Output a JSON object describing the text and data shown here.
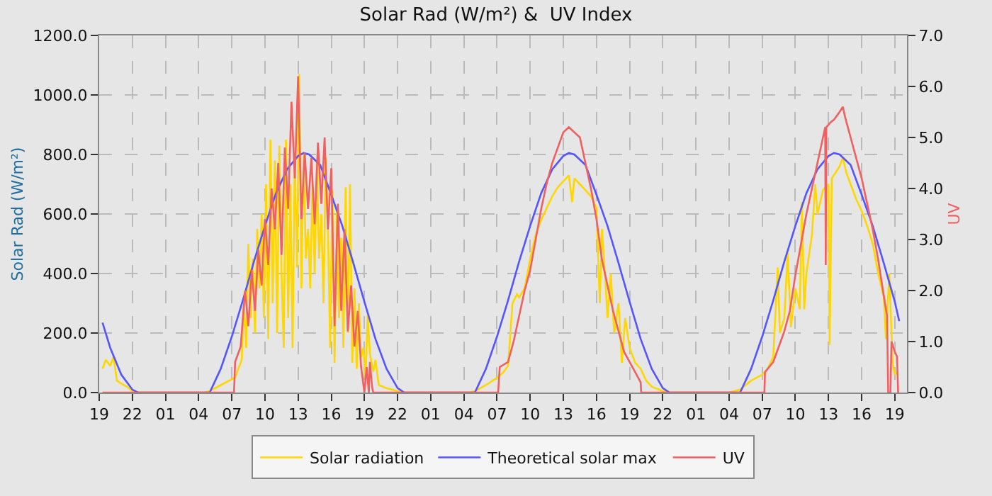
{
  "chart_data": {
    "type": "line",
    "title": "Solar Rad (W/m²) &  UV Index",
    "ylabel": "Solar Rad (W/m²)",
    "y2label": "UV",
    "xlim": [
      "--01-01T19:00",
      "--01-04T20:06"
    ],
    "xticks": [
      {
        "value": "--01-01T19:00",
        "label": "19"
      },
      {
        "value": "--01-01T22:00",
        "label": "22"
      },
      {
        "value": "--01-02T01:00",
        "label": "01"
      },
      {
        "value": "--01-02T04:00",
        "label": "04"
      },
      {
        "value": "--01-02T07:00",
        "label": "07"
      },
      {
        "value": "--01-02T10:00",
        "label": "10"
      },
      {
        "value": "--01-02T13:00",
        "label": "13"
      },
      {
        "value": "--01-02T16:00",
        "label": "16"
      },
      {
        "value": "--01-02T19:00",
        "label": "19"
      },
      {
        "value": "--01-02T22:00",
        "label": "22"
      },
      {
        "value": "--01-03T01:00",
        "label": "01"
      },
      {
        "value": "--01-03T04:00",
        "label": "04"
      },
      {
        "value": "--01-03T07:00",
        "label": "07"
      },
      {
        "value": "--01-03T10:00",
        "label": "10"
      },
      {
        "value": "--01-03T13:00",
        "label": "13"
      },
      {
        "value": "--01-03T16:00",
        "label": "16"
      },
      {
        "value": "--01-03T19:00",
        "label": "19"
      },
      {
        "value": "--01-03T22:00",
        "label": "22"
      },
      {
        "value": "--01-04T01:00",
        "label": "01"
      },
      {
        "value": "--01-04T04:00",
        "label": "04"
      },
      {
        "value": "--01-04T07:00",
        "label": "07"
      },
      {
        "value": "--01-04T10:00",
        "label": "10"
      },
      {
        "value": "--01-04T13:00",
        "label": "13"
      },
      {
        "value": "--01-04T16:00",
        "label": "16"
      },
      {
        "value": "--01-04T19:00",
        "label": "19"
      }
    ],
    "ylim": [
      0,
      1200
    ],
    "yticks": [
      {
        "value": 0,
        "label": "0.0"
      },
      {
        "value": 200,
        "label": "200.0"
      },
      {
        "value": 400,
        "label": "400.0"
      },
      {
        "value": 600,
        "label": "600.0"
      },
      {
        "value": 800,
        "label": "800.0"
      },
      {
        "value": 1000,
        "label": "1000.0"
      },
      {
        "value": 1200,
        "label": "1200.0"
      }
    ],
    "y2lim": [
      0,
      7
    ],
    "y2ticks": [
      {
        "value": 0,
        "label": "0.0"
      },
      {
        "value": 1,
        "label": "1.0"
      },
      {
        "value": 2,
        "label": "2.0"
      },
      {
        "value": 3,
        "label": "3.0"
      },
      {
        "value": 4,
        "label": "4.0"
      },
      {
        "value": 5,
        "label": "5.0"
      },
      {
        "value": 6,
        "label": "6.0"
      },
      {
        "value": 7,
        "label": "7.0"
      }
    ],
    "grid": true,
    "legend": "bottom",
    "line_style": "solid",
    "series": [
      {
        "name": "Solar radiation",
        "color": "#ffd700",
        "x": [
          "--01-01T19:18",
          "--01-01T19:36",
          "--01-01T20:00",
          "--01-01T20:18",
          "--01-01T20:36",
          "--01-01T21:00",
          "--01-01T21:30",
          "--01-01T22:00",
          "--01-01T22:30",
          "--01-02T04:30",
          "--01-02T05:00",
          "--01-02T06:00",
          "--01-02T07:00",
          "--01-02T07:18",
          "--01-02T07:36",
          "--01-02T07:54",
          "--01-02T08:06",
          "--01-02T08:18",
          "--01-02T08:30",
          "--01-02T08:42",
          "--01-02T08:54",
          "--01-02T09:06",
          "--01-02T09:18",
          "--01-02T09:30",
          "--01-02T09:42",
          "--01-02T09:54",
          "--01-02T10:06",
          "--01-02T10:18",
          "--01-02T10:30",
          "--01-02T10:42",
          "--01-02T10:54",
          "--01-02T11:06",
          "--01-02T11:18",
          "--01-02T11:30",
          "--01-02T11:42",
          "--01-02T11:54",
          "--01-02T12:06",
          "--01-02T12:18",
          "--01-02T12:30",
          "--01-02T12:42",
          "--01-02T12:54",
          "--01-02T13:06",
          "--01-02T13:18",
          "--01-02T13:30",
          "--01-02T13:42",
          "--01-02T13:54",
          "--01-02T14:06",
          "--01-02T14:18",
          "--01-02T14:30",
          "--01-02T14:42",
          "--01-02T14:54",
          "--01-02T15:06",
          "--01-02T15:18",
          "--01-02T15:30",
          "--01-02T15:42",
          "--01-02T15:54",
          "--01-02T16:06",
          "--01-02T16:18",
          "--01-02T16:30",
          "--01-02T16:42",
          "--01-02T16:54",
          "--01-02T17:06",
          "--01-02T17:18",
          "--01-02T17:30",
          "--01-02T17:42",
          "--01-02T17:54",
          "--01-02T18:06",
          "--01-02T18:18",
          "--01-02T18:30",
          "--01-02T18:42",
          "--01-02T18:54",
          "--01-02T19:06",
          "--01-02T19:18",
          "--01-02T19:30",
          "--01-02T19:48",
          "--01-02T20:00",
          "--01-02T20:18",
          "--01-02T21:00",
          "--01-02T22:00",
          "--01-02T22:30",
          "--01-03T04:30",
          "--01-03T05:00",
          "--01-03T06:00",
          "--01-03T07:00",
          "--01-03T07:30",
          "--01-03T08:00",
          "--01-03T08:24",
          "--01-03T08:48",
          "--01-03T09:00",
          "--01-03T09:30",
          "--01-03T10:00",
          "--01-03T10:30",
          "--01-03T11:00",
          "--01-03T11:30",
          "--01-03T12:00",
          "--01-03T12:30",
          "--01-03T13:00",
          "--01-03T13:30",
          "--01-03T13:48",
          "--01-03T14:00",
          "--01-03T14:30",
          "--01-03T15:00",
          "--01-03T15:30",
          "--01-03T16:00",
          "--01-03T16:18",
          "--01-03T16:30",
          "--01-03T16:48",
          "--01-03T17:00",
          "--01-03T17:18",
          "--01-03T17:36",
          "--01-03T18:00",
          "--01-03T18:18",
          "--01-03T18:36",
          "--01-03T19:00",
          "--01-03T19:30",
          "--01-03T20:00",
          "--01-03T20:30",
          "--01-03T21:00",
          "--01-03T22:00",
          "--01-03T22:30",
          "--01-04T04:00",
          "--01-04T05:00",
          "--01-04T06:00",
          "--01-04T07:00",
          "--01-04T07:30",
          "--01-04T08:00",
          "--01-04T08:24",
          "--01-04T08:36",
          "--01-04T09:00",
          "--01-04T09:18",
          "--01-04T09:36",
          "--01-04T10:00",
          "--01-04T10:24",
          "--01-04T10:36",
          "--01-04T10:48",
          "--01-04T11:00",
          "--01-04T11:30",
          "--01-04T11:48",
          "--01-04T12:00",
          "--01-04T12:30",
          "--01-04T13:00",
          "--01-04T13:06",
          "--01-04T13:18",
          "--01-04T14:00",
          "--01-04T14:18",
          "--01-04T14:36",
          "--01-04T15:00",
          "--01-04T15:30",
          "--01-04T16:00",
          "--01-04T16:30",
          "--01-04T17:00",
          "--01-04T17:30",
          "--01-04T18:00",
          "--01-04T18:12",
          "--01-04T18:30",
          "--01-04T18:48",
          "--01-04T19:00",
          "--01-04T19:18"
        ],
        "values": [
          80,
          110,
          90,
          120,
          40,
          30,
          20,
          5,
          0,
          0,
          5,
          25,
          45,
          50,
          80,
          110,
          300,
          150,
          500,
          250,
          450,
          200,
          550,
          350,
          600,
          250,
          700,
          180,
          850,
          300,
          780,
          200,
          830,
          400,
          150,
          850,
          250,
          700,
          150,
          800,
          420,
          1070,
          350,
          800,
          450,
          550,
          350,
          700,
          400,
          780,
          450,
          600,
          300,
          790,
          550,
          150,
          680,
          100,
          620,
          250,
          520,
          150,
          690,
          200,
          700,
          100,
          350,
          80,
          300,
          120,
          150,
          50,
          260,
          130,
          70,
          110,
          25,
          15,
          5,
          0,
          0,
          5,
          25,
          50,
          65,
          90,
          300,
          330,
          320,
          350,
          450,
          530,
          580,
          620,
          660,
          690,
          710,
          730,
          640,
          720,
          700,
          680,
          660,
          620,
          300,
          550,
          380,
          250,
          400,
          200,
          300,
          100,
          250,
          150,
          100,
          80,
          40,
          20,
          5,
          0,
          0,
          10,
          40,
          60,
          80,
          120,
          420,
          200,
          250,
          470,
          220,
          350,
          280,
          640,
          280,
          400,
          530,
          700,
          600,
          680,
          700,
          160,
          720,
          760,
          790,
          740,
          700,
          650,
          610,
          560,
          500,
          400,
          320,
          180,
          400,
          100,
          60,
          70
        ]
      },
      {
        "name": "Theoretical solar max",
        "color": "#5555ff",
        "x": [
          "--01-01T19:18",
          "--01-01T20:00",
          "--01-01T21:00",
          "--01-01T22:00",
          "--01-01T22:30",
          "--01-02T05:00",
          "--01-02T06:00",
          "--01-02T07:00",
          "--01-02T08:00",
          "--01-02T09:00",
          "--01-02T10:00",
          "--01-02T11:00",
          "--01-02T12:00",
          "--01-02T13:00",
          "--01-02T13:30",
          "--01-02T14:00",
          "--01-02T15:00",
          "--01-02T16:00",
          "--01-02T17:00",
          "--01-02T18:00",
          "--01-02T19:00",
          "--01-02T20:00",
          "--01-02T21:00",
          "--01-02T22:00",
          "--01-02T22:36",
          "--01-03T05:00",
          "--01-03T06:00",
          "--01-03T07:00",
          "--01-03T08:00",
          "--01-03T09:00",
          "--01-03T10:00",
          "--01-03T11:00",
          "--01-03T12:00",
          "--01-03T13:00",
          "--01-03T13:30",
          "--01-03T14:00",
          "--01-03T15:00",
          "--01-03T16:00",
          "--01-03T17:00",
          "--01-03T18:00",
          "--01-03T19:00",
          "--01-03T20:00",
          "--01-03T21:00",
          "--01-03T22:00",
          "--01-03T22:36",
          "--01-04T05:00",
          "--01-04T06:00",
          "--01-04T07:00",
          "--01-04T08:00",
          "--01-04T09:00",
          "--01-04T10:00",
          "--01-04T11:00",
          "--01-04T12:00",
          "--01-04T13:00",
          "--01-04T13:30",
          "--01-04T14:00",
          "--01-04T15:00",
          "--01-04T16:00",
          "--01-04T17:00",
          "--01-04T18:00",
          "--01-04T19:00",
          "--01-04T19:24"
        ],
        "values": [
          235,
          150,
          60,
          10,
          0,
          0,
          80,
          188,
          310,
          440,
          560,
          670,
          750,
          795,
          805,
          800,
          765,
          665,
          560,
          435,
          305,
          180,
          80,
          15,
          0,
          0,
          80,
          188,
          310,
          440,
          560,
          670,
          750,
          795,
          805,
          800,
          765,
          665,
          560,
          435,
          305,
          180,
          80,
          15,
          0,
          0,
          80,
          188,
          310,
          440,
          560,
          670,
          750,
          795,
          805,
          800,
          765,
          665,
          560,
          435,
          305,
          240
        ]
      },
      {
        "name": "UV",
        "color": "#f06060",
        "axis": "y2",
        "x": [
          "--01-01T19:18",
          "--01-02T07:12",
          "--01-02T07:18",
          "--01-02T07:48",
          "--01-02T08:12",
          "--01-02T08:30",
          "--01-02T08:48",
          "--01-02T09:06",
          "--01-02T09:24",
          "--01-02T09:42",
          "--01-02T10:00",
          "--01-02T10:18",
          "--01-02T10:36",
          "--01-02T10:54",
          "--01-02T11:12",
          "--01-02T11:30",
          "--01-02T11:48",
          "--01-02T12:06",
          "--01-02T12:24",
          "--01-02T12:42",
          "--01-02T13:00",
          "--01-02T13:18",
          "--01-02T13:36",
          "--01-02T13:54",
          "--01-02T14:12",
          "--01-02T14:30",
          "--01-02T14:48",
          "--01-02T15:06",
          "--01-02T15:24",
          "--01-02T15:42",
          "--01-02T16:00",
          "--01-02T16:18",
          "--01-02T16:36",
          "--01-02T16:54",
          "--01-02T17:12",
          "--01-02T17:30",
          "--01-02T17:48",
          "--01-02T18:06",
          "--01-02T18:24",
          "--01-02T18:42",
          "--01-02T19:00",
          "--01-02T19:12",
          "--01-02T19:24",
          "--01-02T19:30",
          "--01-02T19:42",
          "--01-02T19:48",
          "--01-03T07:06",
          "--01-03T07:15",
          "--01-03T08:00",
          "--01-03T08:30",
          "--01-03T09:00",
          "--01-03T09:30",
          "--01-03T10:00",
          "--01-03T10:30",
          "--01-03T11:00",
          "--01-03T11:30",
          "--01-03T12:00",
          "--01-03T12:30",
          "--01-03T13:00",
          "--01-03T13:30",
          "--01-03T14:00",
          "--01-03T14:30",
          "--01-03T15:00",
          "--01-03T15:30",
          "--01-03T16:00",
          "--01-03T16:30",
          "--01-03T17:00",
          "--01-03T17:30",
          "--01-03T18:00",
          "--01-03T18:30",
          "--01-03T19:00",
          "--01-03T19:30",
          "--01-03T20:00",
          "--01-03T20:03",
          "--01-04T07:12",
          "--01-04T07:15",
          "--01-04T08:00",
          "--01-04T08:30",
          "--01-04T09:00",
          "--01-04T09:30",
          "--01-04T10:00",
          "--01-04T10:30",
          "--01-04T11:00",
          "--01-04T11:30",
          "--01-04T12:00",
          "--01-04T12:30",
          "--01-04T12:42",
          "--01-04T12:45",
          "--01-04T12:48",
          "--01-04T13:12",
          "--01-04T13:30",
          "--01-04T14:00",
          "--01-04T14:18",
          "--01-04T14:30",
          "--01-04T15:00",
          "--01-04T15:30",
          "--01-04T16:00",
          "--01-04T16:30",
          "--01-04T17:00",
          "--01-04T17:30",
          "--01-04T18:00",
          "--01-04T18:18",
          "--01-04T18:24",
          "--01-04T18:36",
          "--01-04T18:42",
          "--01-04T19:00",
          "--01-04T19:12",
          "--01-04T19:18"
        ],
        "values": [
          0,
          0,
          0.6,
          0.9,
          2.0,
          1.3,
          2.4,
          1.6,
          2.8,
          2.1,
          3.4,
          2.5,
          4.0,
          3.2,
          4.5,
          2.7,
          4.8,
          3.6,
          5.7,
          4.2,
          6.2,
          3.4,
          4.7,
          3.6,
          4.6,
          3.3,
          4.9,
          3.7,
          5.0,
          3.2,
          4.4,
          1.3,
          3.7,
          1.6,
          3.2,
          1.2,
          2.1,
          0.9,
          1.6,
          0.5,
          0,
          0.5,
          0,
          0.6,
          0.1,
          0,
          0,
          0.5,
          0.6,
          1.0,
          1.5,
          2.0,
          2.4,
          3.0,
          3.6,
          4.1,
          4.5,
          4.8,
          5.1,
          5.2,
          5.1,
          5.0,
          4.5,
          4.0,
          3.4,
          2.6,
          2.1,
          1.6,
          1.2,
          0.8,
          0.6,
          0.4,
          0.2,
          0,
          0,
          0.4,
          0.6,
          0.9,
          1.2,
          1.6,
          2.3,
          2.9,
          3.5,
          4.0,
          4.5,
          5.0,
          5.2,
          2.5,
          5.2,
          5.3,
          5.35,
          5.5,
          5.6,
          5.4,
          5.0,
          4.6,
          4.2,
          3.7,
          3.2,
          2.6,
          1.9,
          1.5,
          0,
          0,
          1.0,
          0.8,
          0.7,
          0
        ]
      }
    ]
  }
}
